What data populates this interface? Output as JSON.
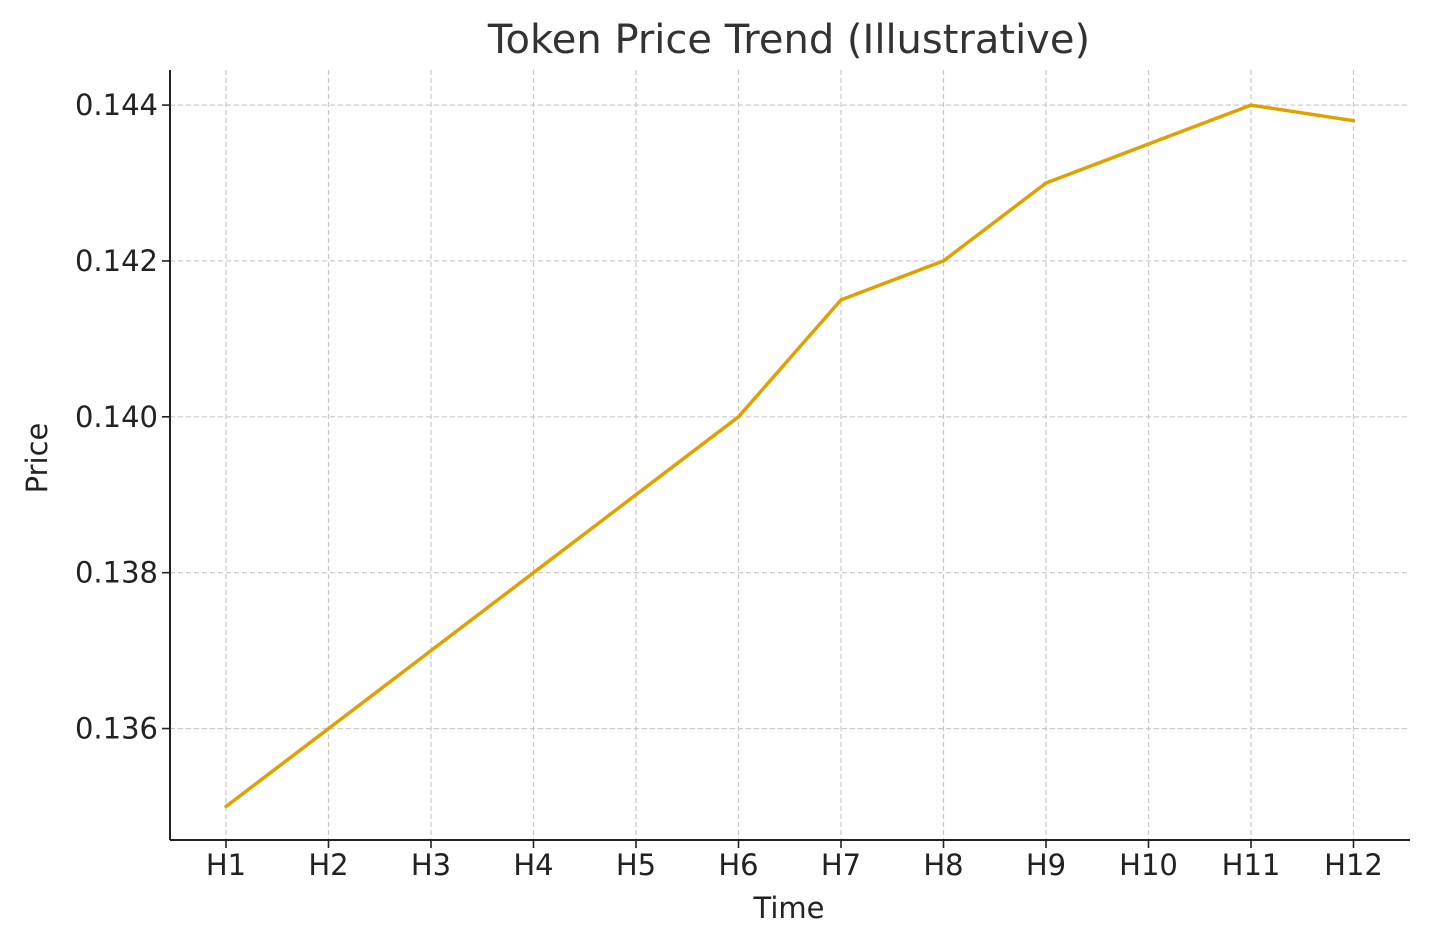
{
  "chart_data": {
    "type": "line",
    "title": "Token Price Trend (Illustrative)",
    "xlabel": "Time",
    "ylabel": "Price",
    "categories": [
      "H1",
      "H2",
      "H3",
      "H4",
      "H5",
      "H6",
      "H7",
      "H8",
      "H9",
      "H10",
      "H11",
      "H12"
    ],
    "series": [
      {
        "values": [
          0.135,
          0.136,
          0.137,
          0.138,
          0.139,
          0.14,
          0.1415,
          0.142,
          0.143,
          0.1435,
          0.144,
          0.1438
        ],
        "color": "#e0a000"
      }
    ],
    "yticks": [
      "0.136",
      "0.138",
      "0.140",
      "0.142",
      "0.144"
    ],
    "ylim": [
      0.13457,
      0.14445
    ],
    "grid": true,
    "legend": "none"
  }
}
